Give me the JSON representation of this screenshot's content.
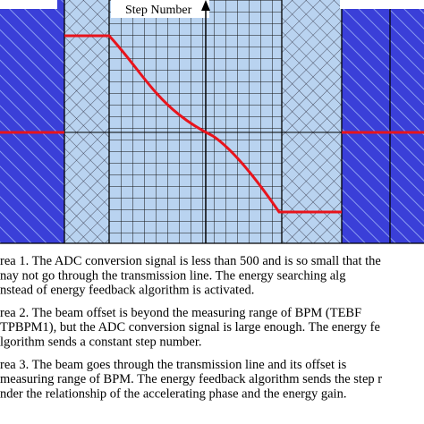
{
  "diagram": {
    "axis_label": "Step Number"
  },
  "paragraphs": [
    {
      "lines": [
        "rea 1. The ADC conversion signal is less than 500 and is so small that the",
        "nay not go through the transmission line. The energy searching alg",
        "nstead of energy feedback algorithm is activated."
      ]
    },
    {
      "lines": [
        "rea 2. The beam offset is beyond the measuring range of BPM (TEBF",
        "TPBPM1), but the ADC conversion signal is large enough. The energy fe",
        "lgorithm sends a constant step number."
      ]
    },
    {
      "lines": [
        "rea 3. The beam goes through the transmission line and its offset is",
        "measuring range of BPM. The energy feedback algorithm sends the step r",
        "nder the relationship of the accelerating phase and the energy gain."
      ]
    }
  ]
}
